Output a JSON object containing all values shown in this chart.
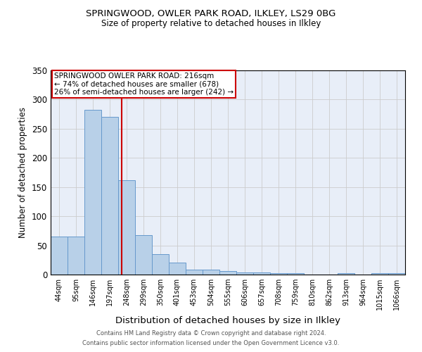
{
  "title1": "SPRINGWOOD, OWLER PARK ROAD, ILKLEY, LS29 0BG",
  "title2": "Size of property relative to detached houses in Ilkley",
  "xlabel": "Distribution of detached houses by size in Ilkley",
  "ylabel": "Number of detached properties",
  "categories": [
    "44sqm",
    "95sqm",
    "146sqm",
    "197sqm",
    "248sqm",
    "299sqm",
    "350sqm",
    "401sqm",
    "453sqm",
    "504sqm",
    "555sqm",
    "606sqm",
    "657sqm",
    "708sqm",
    "759sqm",
    "810sqm",
    "862sqm",
    "913sqm",
    "964sqm",
    "1015sqm",
    "1066sqm"
  ],
  "values": [
    65,
    65,
    283,
    270,
    162,
    68,
    35,
    20,
    8,
    9,
    6,
    4,
    4,
    2,
    3,
    0,
    0,
    2,
    0,
    2,
    3
  ],
  "bar_color": "#b8d0e8",
  "bar_edge_color": "#6699cc",
  "red_line_x": 3.72,
  "annotation_text": "SPRINGWOOD OWLER PARK ROAD: 216sqm\n← 74% of detached houses are smaller (678)\n26% of semi-detached houses are larger (242) →",
  "annotation_box_color": "#ffffff",
  "annotation_box_edge": "#cc0000",
  "red_line_color": "#cc0000",
  "footer1": "Contains HM Land Registry data © Crown copyright and database right 2024.",
  "footer2": "Contains public sector information licensed under the Open Government Licence v3.0.",
  "ylim": [
    0,
    350
  ],
  "yticks": [
    0,
    50,
    100,
    150,
    200,
    250,
    300,
    350
  ],
  "grid_color": "#cccccc",
  "bg_color": "#e8eef8",
  "fig_bg": "#ffffff"
}
